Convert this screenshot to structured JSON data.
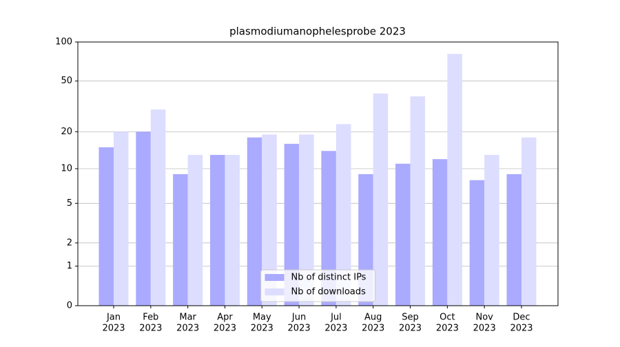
{
  "chart_data": {
    "type": "bar",
    "title": "plasmodiumanophelesprobe 2023",
    "categories": [
      [
        "Jan",
        "2023"
      ],
      [
        "Feb",
        "2023"
      ],
      [
        "Mar",
        "2023"
      ],
      [
        "Apr",
        "2023"
      ],
      [
        "May",
        "2023"
      ],
      [
        "Jun",
        "2023"
      ],
      [
        "Jul",
        "2023"
      ],
      [
        "Aug",
        "2023"
      ],
      [
        "Sep",
        "2023"
      ],
      [
        "Oct",
        "2023"
      ],
      [
        "Nov",
        "2023"
      ],
      [
        "Dec",
        "2023"
      ]
    ],
    "series": [
      {
        "name": "Nb of distinct IPs",
        "color": "#aaaaff",
        "values": [
          15,
          20,
          9,
          13,
          18,
          16,
          14,
          9,
          11,
          12,
          8,
          9
        ]
      },
      {
        "name": "Nb of downloads",
        "color": "#ddddff",
        "values": [
          20,
          30,
          13,
          13,
          19,
          19,
          23,
          40,
          38,
          81,
          13,
          18
        ]
      }
    ],
    "yscale": "log1p",
    "ylim": [
      0,
      100
    ],
    "yticks": [
      0,
      1,
      2,
      5,
      10,
      20,
      50,
      100
    ],
    "grid": true,
    "legend": "lower center"
  }
}
